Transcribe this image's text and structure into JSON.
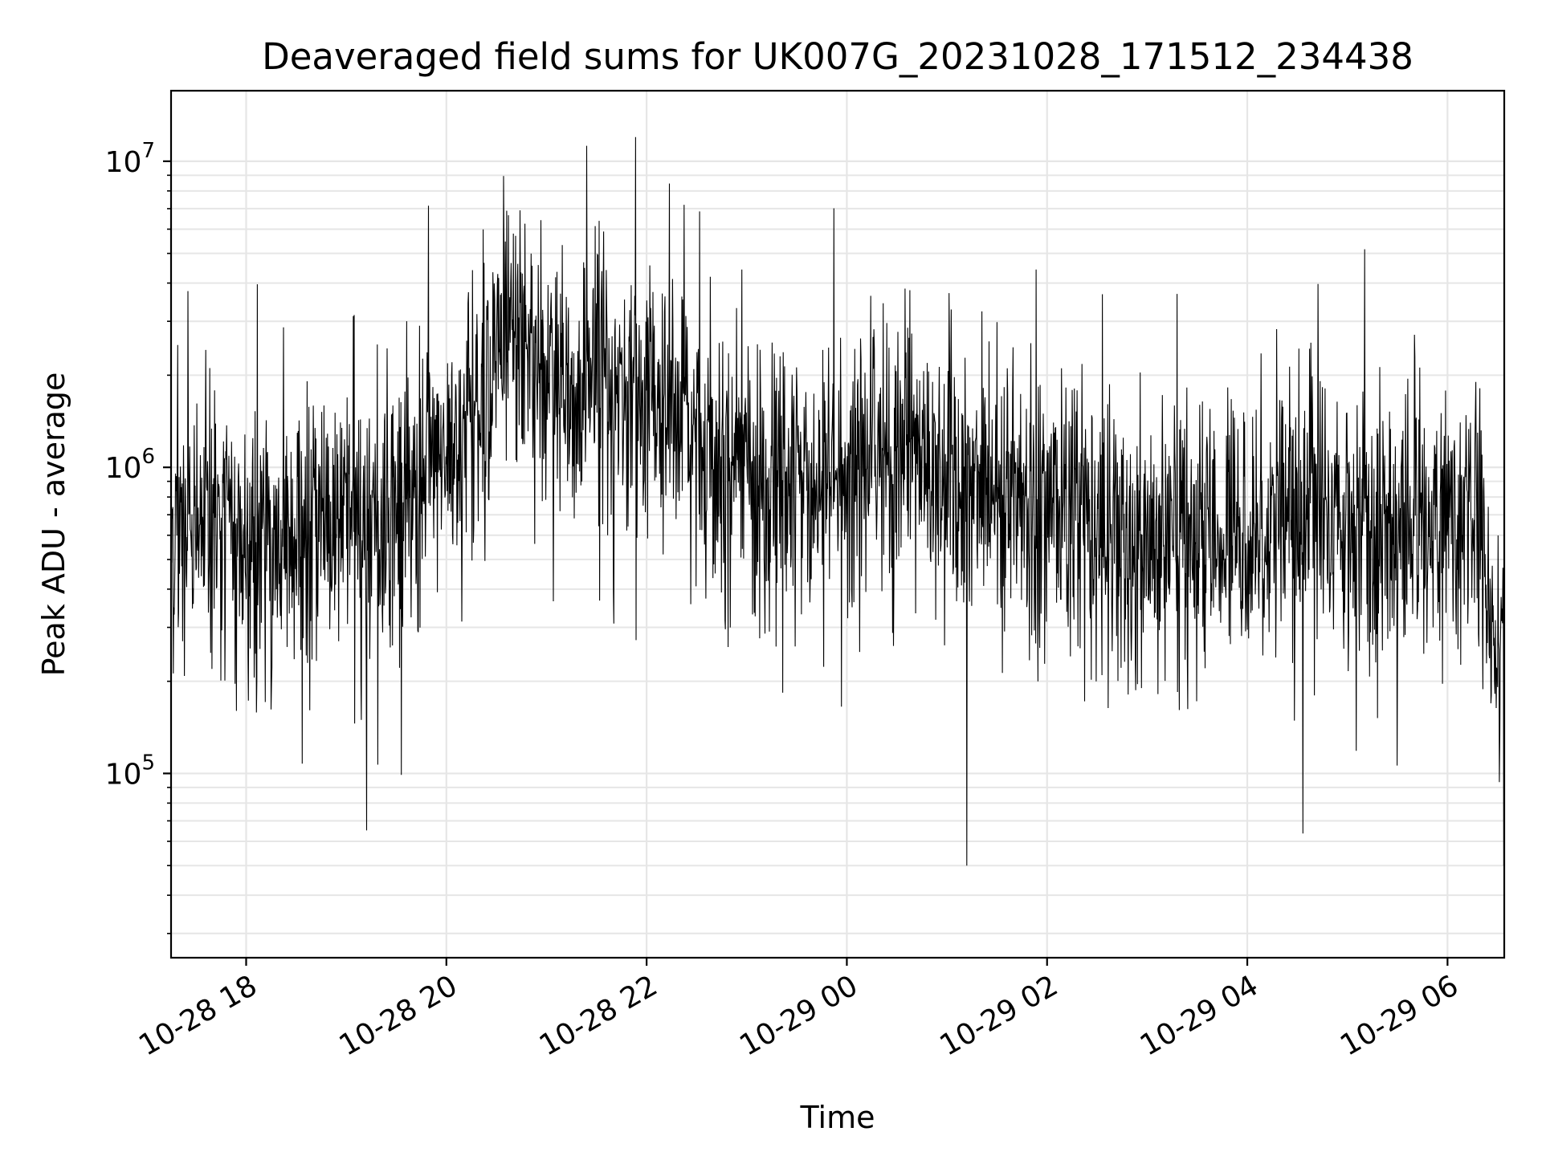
{
  "chart_data": {
    "type": "line",
    "title": "Deaveraged field sums for UK007G_20231028_171512_234438",
    "xlabel": "Time",
    "ylabel": "Peak ADU - average",
    "x_ticks": [
      "10-28 18",
      "10-28 20",
      "10-28 22",
      "10-29 00",
      "10-29 02",
      "10-29 04",
      "10-29 06"
    ],
    "x_range": [
      "2023-10-28 17:15",
      "2023-10-29 06:34"
    ],
    "y_scale": "log",
    "y_ticks": [
      {
        "base": "10",
        "exp": "5",
        "value": 100000
      },
      {
        "base": "10",
        "exp": "6",
        "value": 1000000
      },
      {
        "base": "10",
        "exp": "7",
        "value": 10000000
      }
    ],
    "ylim": [
      25000,
      17000000
    ],
    "grid": true,
    "line_color": "#000000",
    "grid_color": "#e6e6e6",
    "series": [
      {
        "x": [
          "2023-10-28 17:15",
          "2023-10-28 17:45",
          "2023-10-28 18:15",
          "2023-10-28 18:45",
          "2023-10-28 19:15",
          "2023-10-28 19:45",
          "2023-10-28 20:15",
          "2023-10-28 20:35",
          "2023-10-28 20:50",
          "2023-10-28 21:15",
          "2023-10-28 21:30",
          "2023-10-28 21:45",
          "2023-10-28 22:15",
          "2023-10-28 22:45",
          "2023-10-28 23:15",
          "2023-10-28 23:45",
          "2023-10-29 00:15",
          "2023-10-29 00:45",
          "2023-10-29 01:15",
          "2023-10-29 01:45",
          "2023-10-29 02:15",
          "2023-10-29 02:45",
          "2023-10-29 03:15",
          "2023-10-29 03:45",
          "2023-10-29 04:15",
          "2023-10-29 04:45",
          "2023-10-29 05:15",
          "2023-10-29 05:45",
          "2023-10-29 06:15",
          "2023-10-29 06:34"
        ],
        "y": [
          600000,
          650000,
          550000,
          600000,
          700000,
          800000,
          1500000,
          2800000,
          2500000,
          1500000,
          2200000,
          1800000,
          1500000,
          1100000,
          900000,
          800000,
          1200000,
          1100000,
          900000,
          800000,
          700000,
          550000,
          600000,
          600000,
          650000,
          750000,
          650000,
          600000,
          800000,
          250000
        ]
      }
    ]
  }
}
